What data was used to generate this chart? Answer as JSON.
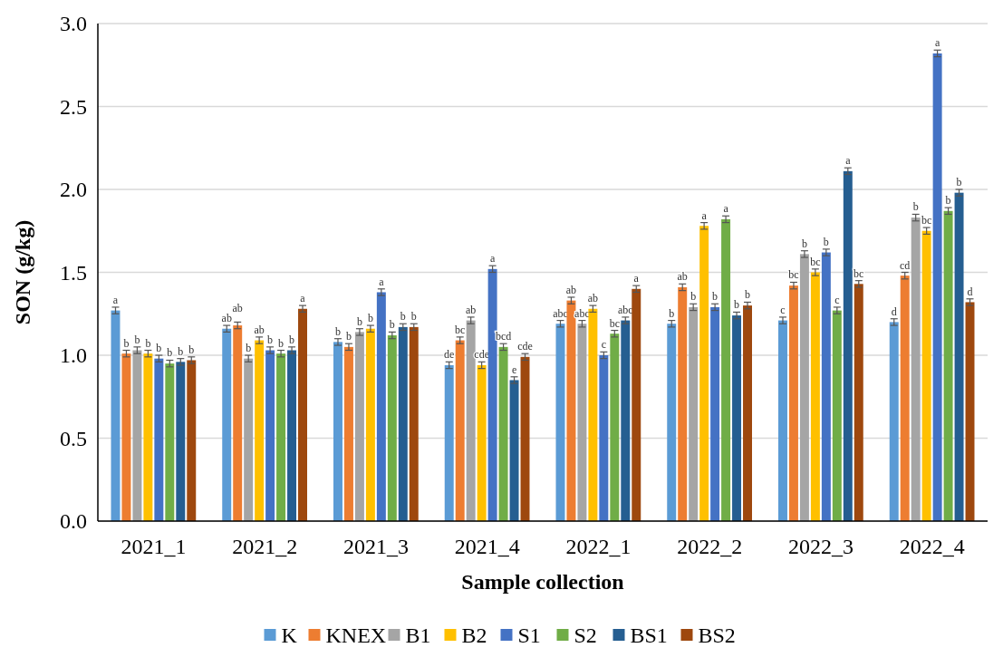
{
  "chart_data": {
    "type": "bar",
    "xlabel": "Sample collection",
    "ylabel": "SON (g/kg)",
    "categories": [
      "2021_1",
      "2021_2",
      "2021_3",
      "2021_4",
      "2022_1",
      "2022_2",
      "2022_3",
      "2022_4"
    ],
    "series": [
      {
        "name": "K",
        "color": "#5b9bd5",
        "values": [
          1.27,
          1.16,
          1.08,
          0.94,
          1.19,
          1.19,
          1.21,
          1.2
        ],
        "errors": [
          0.02,
          0.02,
          0.02,
          0.02,
          0.02,
          0.02,
          0.02,
          0.02
        ],
        "value_labels": [
          "a",
          "ab",
          "b",
          "de",
          "abc",
          "b",
          "c",
          "d"
        ]
      },
      {
        "name": "KNEX",
        "color": "#ed7d31",
        "values": [
          1.01,
          1.18,
          1.05,
          1.09,
          1.33,
          1.41,
          1.42,
          1.48
        ],
        "errors": [
          0.02,
          0.02,
          0.02,
          0.02,
          0.02,
          0.02,
          0.02,
          0.02
        ],
        "value_labels": [
          "b",
          "ab",
          "b",
          "bc",
          "ab",
          "ab",
          "bc",
          "cd"
        ]
      },
      {
        "name": "B1",
        "color": "#a5a5a5",
        "values": [
          1.03,
          0.98,
          1.14,
          1.21,
          1.19,
          1.29,
          1.61,
          1.83
        ],
        "errors": [
          0.02,
          0.02,
          0.02,
          0.02,
          0.02,
          0.02,
          0.02,
          0.02
        ],
        "value_labels": [
          "b",
          "b",
          "b",
          "ab",
          "abc",
          "b",
          "b",
          "b"
        ]
      },
      {
        "name": "B2",
        "color": "#ffc000",
        "values": [
          1.01,
          1.09,
          1.16,
          0.94,
          1.28,
          1.78,
          1.5,
          1.75
        ],
        "errors": [
          0.02,
          0.02,
          0.02,
          0.02,
          0.02,
          0.02,
          0.02,
          0.02
        ],
        "value_labels": [
          "b",
          "ab",
          "b",
          "cde",
          "ab",
          "a",
          "bc",
          "bc"
        ]
      },
      {
        "name": "S1",
        "color": "#4472c4",
        "values": [
          0.98,
          1.03,
          1.38,
          1.52,
          1.0,
          1.29,
          1.62,
          2.82
        ],
        "errors": [
          0.02,
          0.02,
          0.02,
          0.02,
          0.02,
          0.02,
          0.02,
          0.02
        ],
        "value_labels": [
          "b",
          "b",
          "a",
          "a",
          "c",
          "b",
          "b",
          "a"
        ]
      },
      {
        "name": "S2",
        "color": "#70ad47",
        "values": [
          0.95,
          1.01,
          1.12,
          1.05,
          1.13,
          1.82,
          1.27,
          1.87
        ],
        "errors": [
          0.02,
          0.02,
          0.02,
          0.02,
          0.02,
          0.02,
          0.02,
          0.02
        ],
        "value_labels": [
          "b",
          "b",
          "b",
          "bcd",
          "bc",
          "a",
          "c",
          "b"
        ]
      },
      {
        "name": "BS1",
        "color": "#255e91",
        "values": [
          0.96,
          1.03,
          1.17,
          0.85,
          1.21,
          1.24,
          2.11,
          1.98
        ],
        "errors": [
          0.02,
          0.02,
          0.02,
          0.02,
          0.02,
          0.02,
          0.02,
          0.02
        ],
        "value_labels": [
          "b",
          "b",
          "b",
          "e",
          "abc",
          "b",
          "a",
          "b"
        ]
      },
      {
        "name": "BS2",
        "color": "#9e480e",
        "values": [
          0.97,
          1.28,
          1.17,
          0.99,
          1.4,
          1.3,
          1.43,
          1.32
        ],
        "errors": [
          0.02,
          0.02,
          0.02,
          0.02,
          0.02,
          0.02,
          0.02,
          0.02
        ],
        "value_labels": [
          "b",
          "a",
          "b",
          "cde",
          "a",
          "b",
          "bc",
          "d"
        ]
      }
    ],
    "ylim": [
      0,
      3
    ],
    "yticks": [
      {
        "value": 0,
        "label": "0.0"
      },
      {
        "value": 0.5,
        "label": "0.5"
      },
      {
        "value": 1,
        "label": "1.0"
      },
      {
        "value": 1.5,
        "label": "1.5"
      },
      {
        "value": 2,
        "label": "2.0"
      },
      {
        "value": 2.5,
        "label": "2.5"
      },
      {
        "value": 3,
        "label": "3.0"
      }
    ],
    "grid": "y",
    "legend": "bottom"
  }
}
